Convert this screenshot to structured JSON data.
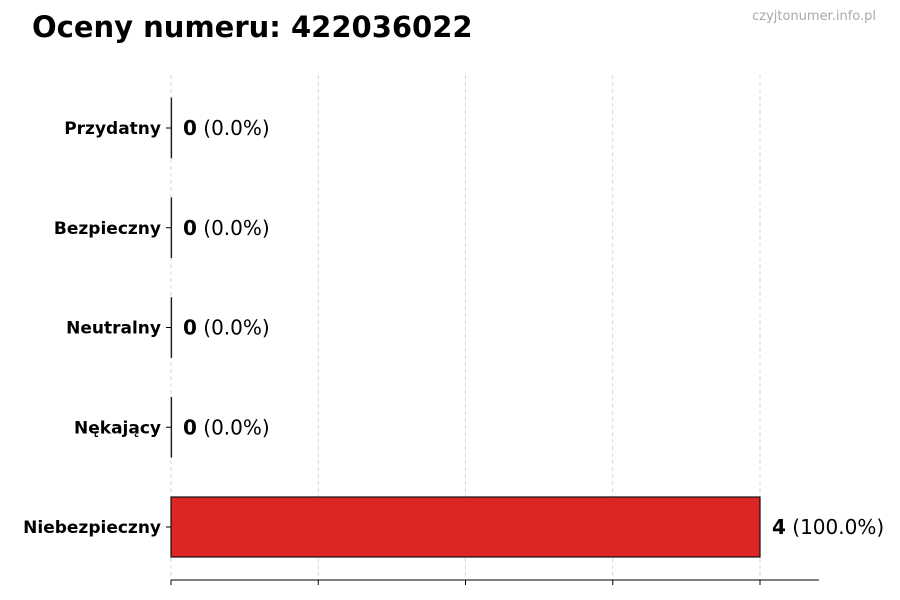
{
  "chart_data": {
    "type": "bar",
    "orientation": "horizontal",
    "title": "Oceny numeru: 422036022",
    "watermark": "czyjtonumer.info.pl",
    "categories": [
      "Przydatny",
      "Bezpieczny",
      "Neutralny",
      "Nękający",
      "Niebezpieczny"
    ],
    "values": [
      0,
      0,
      0,
      0,
      4
    ],
    "percent_labels": [
      "(0.0%)",
      "(0.0%)",
      "(0.0%)",
      "(0.0%)",
      "(100.0%)"
    ],
    "bar_colors": [
      "#2ca02c",
      "#2ca02c",
      "#999999",
      "#ff7f0e",
      "#dc2626"
    ],
    "xlim": [
      0,
      4.4
    ],
    "xticks": [
      0,
      1,
      2,
      3,
      4
    ],
    "xtick_labels_shown": false,
    "grid": "vertical dashed",
    "xlabel": "",
    "ylabel": ""
  }
}
